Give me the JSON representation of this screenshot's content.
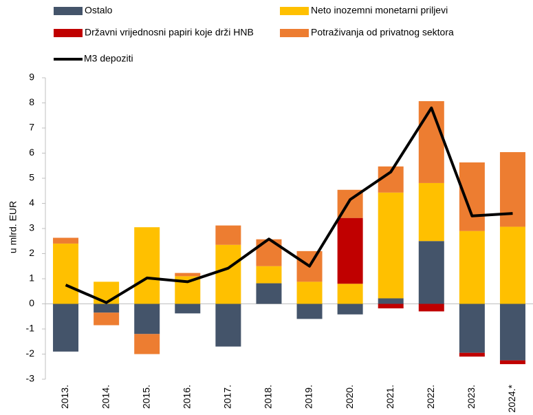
{
  "chart_data": {
    "type": "bar",
    "stacked": true,
    "y_label": "u mlrd. EUR",
    "categories": [
      "2013.",
      "2014.",
      "2015.",
      "2016.",
      "2017.",
      "2018.",
      "2019.",
      "2020.",
      "2021.",
      "2022.",
      "2023.",
      "2024.*"
    ],
    "series": [
      {
        "name": "Ostalo",
        "color": "#44546a",
        "values": [
          -1.9,
          -0.35,
          -1.2,
          -0.38,
          -1.7,
          0.82,
          -0.6,
          -0.42,
          0.22,
          2.5,
          -1.95,
          -2.25
        ]
      },
      {
        "name": "Neto inozemni monetarni priljevi",
        "color": "#ffc000",
        "values": [
          2.4,
          0.88,
          3.05,
          1.1,
          2.35,
          0.68,
          0.88,
          0.8,
          4.21,
          2.31,
          2.9,
          3.07
        ]
      },
      {
        "name": "Državni vrijednosni papiri koje drži HNB",
        "color": "#c00000",
        "values": [
          0,
          0,
          0,
          0,
          0,
          0,
          0,
          2.62,
          -0.18,
          -0.3,
          -0.15,
          -0.15
        ]
      },
      {
        "name": "Potraživanja od privatnog sektora",
        "color": "#ed7d31",
        "values": [
          0.23,
          -0.5,
          -0.8,
          0.13,
          0.77,
          1.07,
          1.22,
          1.12,
          1.04,
          3.26,
          2.73,
          2.97
        ]
      },
      {
        "name": "M3 depoziti",
        "color": "#000000",
        "type": "line",
        "values": [
          0.75,
          0.05,
          1.03,
          0.88,
          1.42,
          2.58,
          1.5,
          4.15,
          5.25,
          7.8,
          3.5,
          3.6
        ]
      }
    ],
    "ylim": [
      -3,
      9
    ],
    "yticks": [
      -3,
      -2,
      -1,
      0,
      1,
      2,
      3,
      4,
      5,
      6,
      7,
      8,
      9
    ],
    "grid": false
  }
}
